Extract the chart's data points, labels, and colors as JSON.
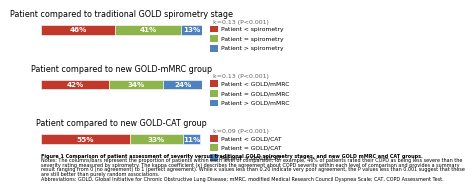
{
  "bars": [
    {
      "title": "Patient compared to traditional GOLD spirometry stage",
      "values": [
        46,
        41,
        13
      ],
      "labels": [
        "46%",
        "41%",
        "13%"
      ],
      "colors": [
        "#c0392b",
        "#8db54b",
        "#4f81bd"
      ],
      "legend_labels": [
        "Patient < spirometry",
        "Patient = spirometry",
        "Patient > spirometry"
      ],
      "kappa": "k=0.13 (P<0.001)"
    },
    {
      "title": "Patient compared to new GOLD-mMRC group",
      "values": [
        42,
        34,
        24
      ],
      "labels": [
        "42%",
        "34%",
        "24%"
      ],
      "colors": [
        "#c0392b",
        "#8db54b",
        "#4f81bd"
      ],
      "legend_labels": [
        "Patient < GOLD/mMRC",
        "Patient = GOLD/mMRC",
        "Patient > GOLD/mMRC"
      ],
      "kappa": "k=0.13 (P<0.001)"
    },
    {
      "title": "Patient compared to new GOLD-CAT group",
      "values": [
        55,
        33,
        11
      ],
      "labels": [
        "55%",
        "33%",
        "11%"
      ],
      "colors": [
        "#c0392b",
        "#8db54b",
        "#4f81bd"
      ],
      "legend_labels": [
        "Patient < GOLD/CAT",
        "Patient = GOLD/CAT",
        "Patient > GOLD/CAT"
      ],
      "kappa": "k=0.09 (P<0.001)"
    }
  ],
  "caption_line1": "Figure 1 Comparison of patient assessment of severity versus traditional GOLD spirometry stages, and new GOLD mMRC and CAT groups.",
  "caption_line2": "Notes: The columns/bars represent the proportion of patients within each level of comparison; for example, 46% of patients rated their COPD as being less severe than the",
  "caption_line3": "severity rating measured by spirometry. The kappa coefficient (κ) describes the agreement about COPD severity within each level of comparison and provides a summary",
  "caption_line4": "result ranging from 0 (no agreement) to 1 (perfect agreement). While κ values less than 0.20 indicate very poor agreement, the P values less than 0.001 suggest that these",
  "caption_line5": "are still better than purely random associations.",
  "caption_abbrev": "Abbreviations: GOLD, Global Initiative for Chronic Obstructive Lung Disease; mMRC, modified Medical Research Council Dyspnea Scale; CAT, COPD Assessment Test.",
  "background_color": "#ffffff",
  "bar_height": 0.55,
  "title_fontsize": 5.8,
  "label_fontsize": 5.2,
  "legend_fontsize": 4.3,
  "kappa_fontsize": 4.5,
  "caption_fontsize": 3.5
}
